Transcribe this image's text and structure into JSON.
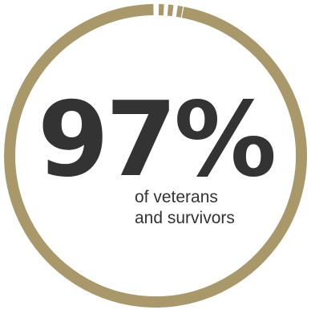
{
  "chart_data": {
    "type": "pie",
    "value": 97,
    "value_label": "97%",
    "remaining_value": 3,
    "max": 100,
    "caption_lines": [
      "of veterans",
      "and survivors"
    ],
    "segments_in_gap": 3
  },
  "colors": {
    "ring": "#a9996a",
    "text": "#333333",
    "background": "#ffffff"
  }
}
